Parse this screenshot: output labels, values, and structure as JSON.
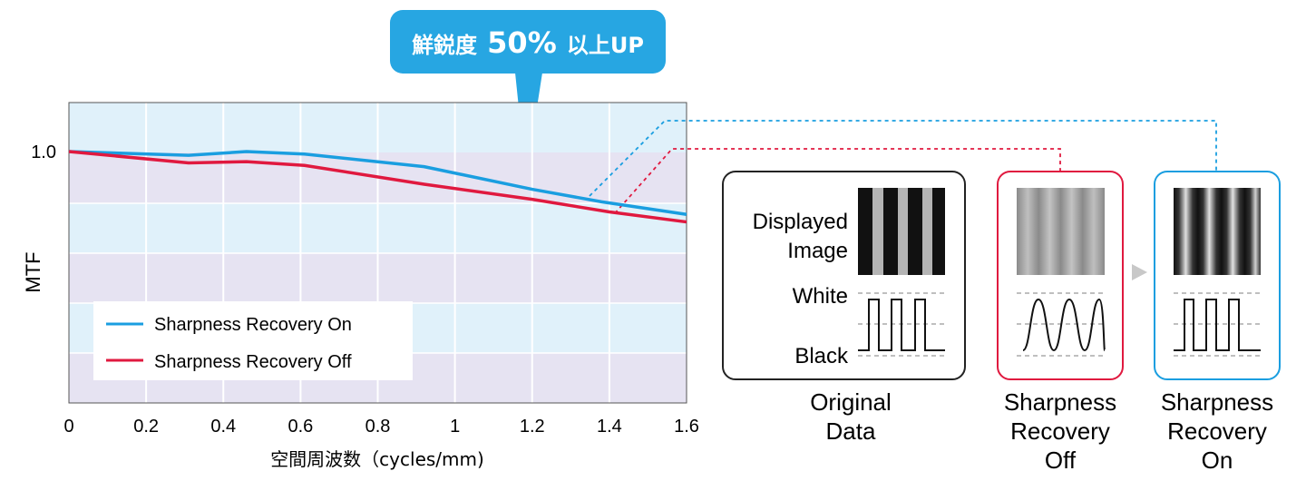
{
  "callout": {
    "prefix": "鮮鋭度",
    "value": "50%",
    "suffix": "以上UP"
  },
  "chart_data": {
    "type": "line",
    "title": "",
    "xlabel": "空間周波数（cycles/mm)",
    "ylabel": "MTF",
    "xlim": [
      0,
      1.6
    ],
    "ylim": [
      0,
      1.1
    ],
    "x_ticks": [
      0,
      0.2,
      0.4,
      0.6,
      0.8,
      1,
      1.2,
      1.4,
      1.6
    ],
    "y_tick_labels": [
      {
        "value": 1.0,
        "label": "1.0"
      }
    ],
    "grid": true,
    "legend_position": "bottom-left",
    "series": [
      {
        "name": "Sharpness Recovery On",
        "color": "#1a9ee0",
        "x": [
          0,
          0.31,
          0.46,
          0.61,
          0.92,
          1.2,
          1.38,
          1.6
        ],
        "y": [
          1.0,
          0.985,
          1.0,
          0.99,
          0.94,
          0.85,
          0.8,
          0.75
        ]
      },
      {
        "name": "Sharpness Recovery Off",
        "color": "#e0193f",
        "x": [
          0,
          0.31,
          0.46,
          0.61,
          0.92,
          1.2,
          1.4,
          1.6
        ],
        "y": [
          1.0,
          0.955,
          0.96,
          0.945,
          0.87,
          0.81,
          0.76,
          0.72
        ]
      }
    ]
  },
  "panels": {
    "original": {
      "row_displayed": "Displayed Image",
      "label_white": "White",
      "label_black": "Black",
      "caption": "Original Data"
    },
    "off": {
      "caption": "Sharpness Recovery Off"
    },
    "on": {
      "caption": "Sharpness Recovery On"
    }
  },
  "colors": {
    "blue": "#1a9ee0",
    "red": "#e0193f",
    "band_light": "#e0f1fa",
    "band_lavender": "#e6e3f2"
  }
}
